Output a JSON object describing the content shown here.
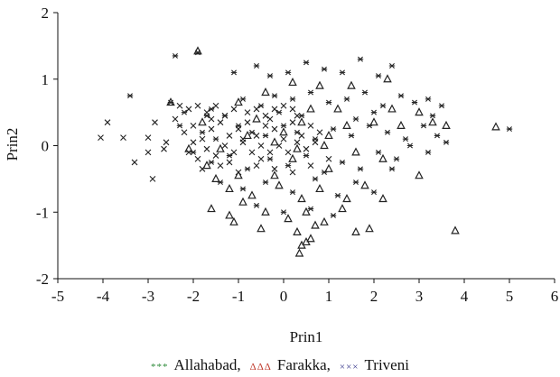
{
  "chart_data": {
    "type": "scatter",
    "title": "",
    "xlabel": "Prin1",
    "ylabel": "Prin2",
    "xlim": [
      -5,
      6
    ],
    "ylim": [
      -2,
      2
    ],
    "xticks": [
      -5,
      -4,
      -3,
      -2,
      -1,
      0,
      1,
      2,
      3,
      4,
      5,
      6
    ],
    "yticks": [
      -2,
      -1,
      0,
      1,
      2
    ],
    "grid": false,
    "legend_position": "bottom",
    "legend": [
      {
        "name": "Allahabad",
        "symbol": "***",
        "separator": ",",
        "color": "#2e8b3a"
      },
      {
        "name": "Farakka",
        "symbol": "ΔΔΔ",
        "separator": ",",
        "color": "#c0392b"
      },
      {
        "name": "Triveni",
        "symbol": "×××",
        "separator": "",
        "color": "#3a3a8c"
      }
    ],
    "series": [
      {
        "name": "Allahabad",
        "marker": "star",
        "points": [
          [
            -2.4,
            1.35
          ],
          [
            -1.9,
            1.4
          ],
          [
            -1.1,
            1.1
          ],
          [
            -0.6,
            1.2
          ],
          [
            -0.3,
            1.05
          ],
          [
            0.1,
            1.1
          ],
          [
            0.5,
            1.25
          ],
          [
            0.9,
            1.15
          ],
          [
            1.3,
            1.1
          ],
          [
            1.7,
            1.3
          ],
          [
            2.1,
            1.05
          ],
          [
            2.4,
            1.2
          ],
          [
            -3.4,
            0.75
          ],
          [
            -2.5,
            0.65
          ],
          [
            -2.2,
            0.5
          ],
          [
            -1.6,
            0.55
          ],
          [
            -1.3,
            0.45
          ],
          [
            -0.9,
            0.7
          ],
          [
            -0.5,
            0.6
          ],
          [
            -0.2,
            0.75
          ],
          [
            0.2,
            0.7
          ],
          [
            0.6,
            0.8
          ],
          [
            1.0,
            0.65
          ],
          [
            1.4,
            0.7
          ],
          [
            1.8,
            0.8
          ],
          [
            2.2,
            0.6
          ],
          [
            2.6,
            0.75
          ],
          [
            2.9,
            0.65
          ],
          [
            3.2,
            0.7
          ],
          [
            3.5,
            0.6
          ],
          [
            3.3,
            0.45
          ],
          [
            -2.3,
            0.3
          ],
          [
            -1.8,
            0.2
          ],
          [
            -1.5,
            0.1
          ],
          [
            -1.0,
            0.3
          ],
          [
            -0.7,
            0.2
          ],
          [
            -0.4,
            0.15
          ],
          [
            0.0,
            0.3
          ],
          [
            0.3,
            0.2
          ],
          [
            0.7,
            0.1
          ],
          [
            1.1,
            0.25
          ],
          [
            1.5,
            0.15
          ],
          [
            1.9,
            0.3
          ],
          [
            2.3,
            0.2
          ],
          [
            2.7,
            0.1
          ],
          [
            3.1,
            0.3
          ],
          [
            3.4,
            0.15
          ],
          [
            3.6,
            0.05
          ],
          [
            3.2,
            -0.1
          ],
          [
            2.8,
            0.0
          ],
          [
            -2.0,
            -0.1
          ],
          [
            -1.6,
            -0.25
          ],
          [
            -1.2,
            -0.15
          ],
          [
            -0.8,
            -0.35
          ],
          [
            -0.3,
            -0.2
          ],
          [
            0.1,
            -0.3
          ],
          [
            0.5,
            -0.15
          ],
          [
            0.9,
            -0.4
          ],
          [
            1.3,
            -0.25
          ],
          [
            1.7,
            -0.35
          ],
          [
            2.1,
            -0.1
          ],
          [
            2.5,
            -0.2
          ],
          [
            2.4,
            -0.35
          ],
          [
            -1.4,
            -0.55
          ],
          [
            -0.9,
            -0.65
          ],
          [
            -0.4,
            -0.55
          ],
          [
            0.2,
            -0.7
          ],
          [
            0.7,
            -0.5
          ],
          [
            1.2,
            -0.75
          ],
          [
            1.6,
            -0.55
          ],
          [
            2.0,
            -0.7
          ],
          [
            -0.6,
            -0.9
          ],
          [
            0.0,
            -1.0
          ],
          [
            0.6,
            -0.95
          ],
          [
            1.1,
            -1.05
          ],
          [
            5.0,
            0.25
          ],
          [
            -1.7,
            0.45
          ],
          [
            0.4,
            0.45
          ],
          [
            1.6,
            0.4
          ],
          [
            -0.1,
            0.5
          ],
          [
            2.0,
            0.5
          ]
        ]
      },
      {
        "name": "Farakka",
        "marker": "triangle",
        "points": [
          [
            -1.9,
            1.42
          ],
          [
            -0.4,
            0.8
          ],
          [
            0.2,
            0.95
          ],
          [
            0.8,
            0.9
          ],
          [
            1.5,
            0.9
          ],
          [
            2.3,
            1.0
          ],
          [
            -2.5,
            0.65
          ],
          [
            -1.0,
            0.65
          ],
          [
            0.6,
            0.55
          ],
          [
            1.2,
            0.55
          ],
          [
            2.4,
            0.55
          ],
          [
            3.0,
            0.5
          ],
          [
            -1.8,
            0.35
          ],
          [
            -0.6,
            0.4
          ],
          [
            0.4,
            0.35
          ],
          [
            1.4,
            0.3
          ],
          [
            2.0,
            0.35
          ],
          [
            2.6,
            0.3
          ],
          [
            3.3,
            0.35
          ],
          [
            4.7,
            0.28
          ],
          [
            3.6,
            0.3
          ],
          [
            -1.4,
            -0.05
          ],
          [
            -0.2,
            0.05
          ],
          [
            0.9,
            0.0
          ],
          [
            1.6,
            -0.1
          ],
          [
            2.2,
            -0.2
          ],
          [
            3.0,
            -0.45
          ],
          [
            -1.5,
            -0.5
          ],
          [
            -1.2,
            -0.65
          ],
          [
            -0.7,
            -0.75
          ],
          [
            -0.1,
            -0.6
          ],
          [
            0.4,
            -0.8
          ],
          [
            0.8,
            -0.65
          ],
          [
            1.4,
            -0.8
          ],
          [
            1.8,
            -0.6
          ],
          [
            2.2,
            -0.8
          ],
          [
            -1.6,
            -0.95
          ],
          [
            -1.2,
            -1.05
          ],
          [
            -0.9,
            -0.85
          ],
          [
            -0.4,
            -1.0
          ],
          [
            0.1,
            -1.1
          ],
          [
            0.5,
            -1.0
          ],
          [
            0.9,
            -1.15
          ],
          [
            1.3,
            -0.95
          ],
          [
            -1.1,
            -1.15
          ],
          [
            -0.5,
            -1.25
          ],
          [
            0.3,
            -1.3
          ],
          [
            0.7,
            -1.2
          ],
          [
            1.6,
            -1.3
          ],
          [
            1.9,
            -1.25
          ],
          [
            3.8,
            -1.28
          ],
          [
            0.4,
            -1.5
          ],
          [
            0.5,
            -1.45
          ],
          [
            0.6,
            -1.4
          ],
          [
            0.35,
            -1.62
          ],
          [
            -1.0,
            -0.45
          ],
          [
            -0.2,
            -0.45
          ],
          [
            0.2,
            -0.2
          ],
          [
            1.0,
            -0.35
          ],
          [
            -1.7,
            -0.3
          ],
          [
            -2.1,
            -0.05
          ],
          [
            -0.8,
            0.15
          ],
          [
            0.0,
            0.2
          ],
          [
            1.0,
            0.15
          ],
          [
            0.3,
            -0.05
          ]
        ]
      },
      {
        "name": "Triveni",
        "marker": "cross",
        "points": [
          [
            -4.05,
            0.12
          ],
          [
            -3.9,
            0.35
          ],
          [
            -3.55,
            0.12
          ],
          [
            -3.0,
            0.12
          ],
          [
            -2.85,
            0.35
          ],
          [
            -3.3,
            -0.25
          ],
          [
            -2.9,
            -0.5
          ],
          [
            -2.65,
            -0.05
          ],
          [
            -3.0,
            -0.1
          ],
          [
            -2.6,
            0.05
          ],
          [
            -2.3,
            0.6
          ],
          [
            -2.1,
            0.55
          ],
          [
            -1.9,
            0.6
          ],
          [
            -1.7,
            0.5
          ],
          [
            -1.5,
            0.6
          ],
          [
            -1.3,
            0.45
          ],
          [
            -1.1,
            0.55
          ],
          [
            -0.8,
            0.5
          ],
          [
            -0.6,
            0.55
          ],
          [
            -0.4,
            0.45
          ],
          [
            -0.2,
            0.55
          ],
          [
            0.0,
            0.6
          ],
          [
            0.2,
            0.55
          ],
          [
            -2.2,
            0.2
          ],
          [
            -2.0,
            0.3
          ],
          [
            -1.8,
            0.1
          ],
          [
            -1.6,
            0.25
          ],
          [
            -1.4,
            0.35
          ],
          [
            -1.2,
            0.15
          ],
          [
            -1.0,
            0.25
          ],
          [
            -0.8,
            0.35
          ],
          [
            -0.6,
            0.15
          ],
          [
            -0.4,
            0.3
          ],
          [
            -0.2,
            0.25
          ],
          [
            0.0,
            0.1
          ],
          [
            0.2,
            0.35
          ],
          [
            0.4,
            0.15
          ],
          [
            0.6,
            0.3
          ],
          [
            0.8,
            0.2
          ],
          [
            -2.1,
            -0.1
          ],
          [
            -1.9,
            -0.2
          ],
          [
            -1.7,
            -0.05
          ],
          [
            -1.5,
            -0.15
          ],
          [
            -1.3,
            0.0
          ],
          [
            -1.1,
            -0.1
          ],
          [
            -0.9,
            0.05
          ],
          [
            -0.7,
            -0.1
          ],
          [
            -0.5,
            0.0
          ],
          [
            -0.3,
            -0.1
          ],
          [
            -0.1,
            0.0
          ],
          [
            0.1,
            -0.1
          ],
          [
            0.3,
            0.05
          ],
          [
            0.5,
            -0.05
          ],
          [
            0.7,
            0.05
          ],
          [
            -1.8,
            -0.35
          ],
          [
            -1.4,
            -0.3
          ],
          [
            -1.0,
            -0.4
          ],
          [
            -0.6,
            -0.3
          ],
          [
            -0.2,
            -0.35
          ],
          [
            0.2,
            -0.4
          ],
          [
            0.6,
            -0.3
          ],
          [
            1.0,
            -0.2
          ],
          [
            -2.4,
            0.4
          ],
          [
            -2.0,
            0.05
          ],
          [
            -1.6,
            0.4
          ],
          [
            -0.9,
            0.1
          ],
          [
            -0.3,
            0.4
          ],
          [
            0.3,
            0.45
          ],
          [
            -1.2,
            -0.25
          ],
          [
            -0.5,
            -0.2
          ]
        ]
      }
    ]
  }
}
